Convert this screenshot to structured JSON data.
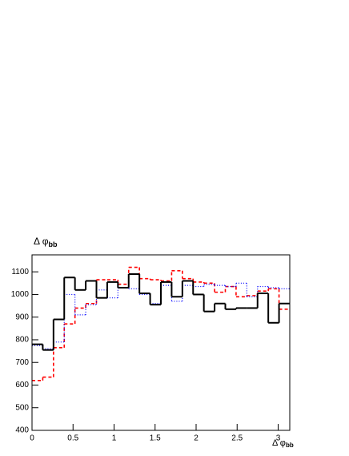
{
  "chart_data": {
    "type": "histogram",
    "title": {
      "main": "Δ φ",
      "sub": "bb"
    },
    "x_label": {
      "main": "Δ φ",
      "sub": "bb"
    },
    "bins": [
      0,
      0.1309,
      0.2618,
      0.3927,
      0.5236,
      0.6545,
      0.7854,
      0.9163,
      1.0472,
      1.1781,
      1.309,
      1.4399,
      1.5708,
      1.7017,
      1.8326,
      1.9635,
      2.0944,
      2.2253,
      2.3562,
      2.4871,
      2.618,
      2.7489,
      2.8798,
      3.0107,
      3.1416
    ],
    "series": [
      {
        "color": "#ff0000",
        "dash": "4,3",
        "width": 1.6,
        "values": [
          620,
          635,
          765,
          870,
          940,
          960,
          1065,
          1065,
          1045,
          1120,
          1070,
          1065,
          1060,
          1105,
          1070,
          1055,
          1050,
          1010,
          1035,
          990,
          995,
          1015,
          1025,
          935
        ]
      },
      {
        "color": "#0000ff",
        "dash": "1,2",
        "width": 1.2,
        "values": [
          775,
          760,
          790,
          1000,
          910,
          955,
          1020,
          985,
          1030,
          1025,
          1000,
          960,
          1040,
          970,
          1040,
          1035,
          1045,
          1040,
          1035,
          1050,
          990,
          1035,
          1030,
          1025
        ]
      },
      {
        "color": "#000000",
        "dash": "none",
        "width": 2,
        "values": [
          780,
          755,
          890,
          1075,
          1020,
          1060,
          985,
          1055,
          1030,
          1090,
          1005,
          955,
          1055,
          990,
          1060,
          1000,
          925,
          960,
          935,
          940,
          940,
          1005,
          875,
          960
        ]
      }
    ],
    "xlim": [
      0,
      3.1416
    ],
    "ylim": [
      400,
      1175
    ],
    "xticks": [
      0,
      0.5,
      1,
      1.5,
      2,
      2.5,
      3
    ],
    "yticks": [
      400,
      500,
      600,
      700,
      800,
      900,
      1000,
      1100
    ]
  }
}
